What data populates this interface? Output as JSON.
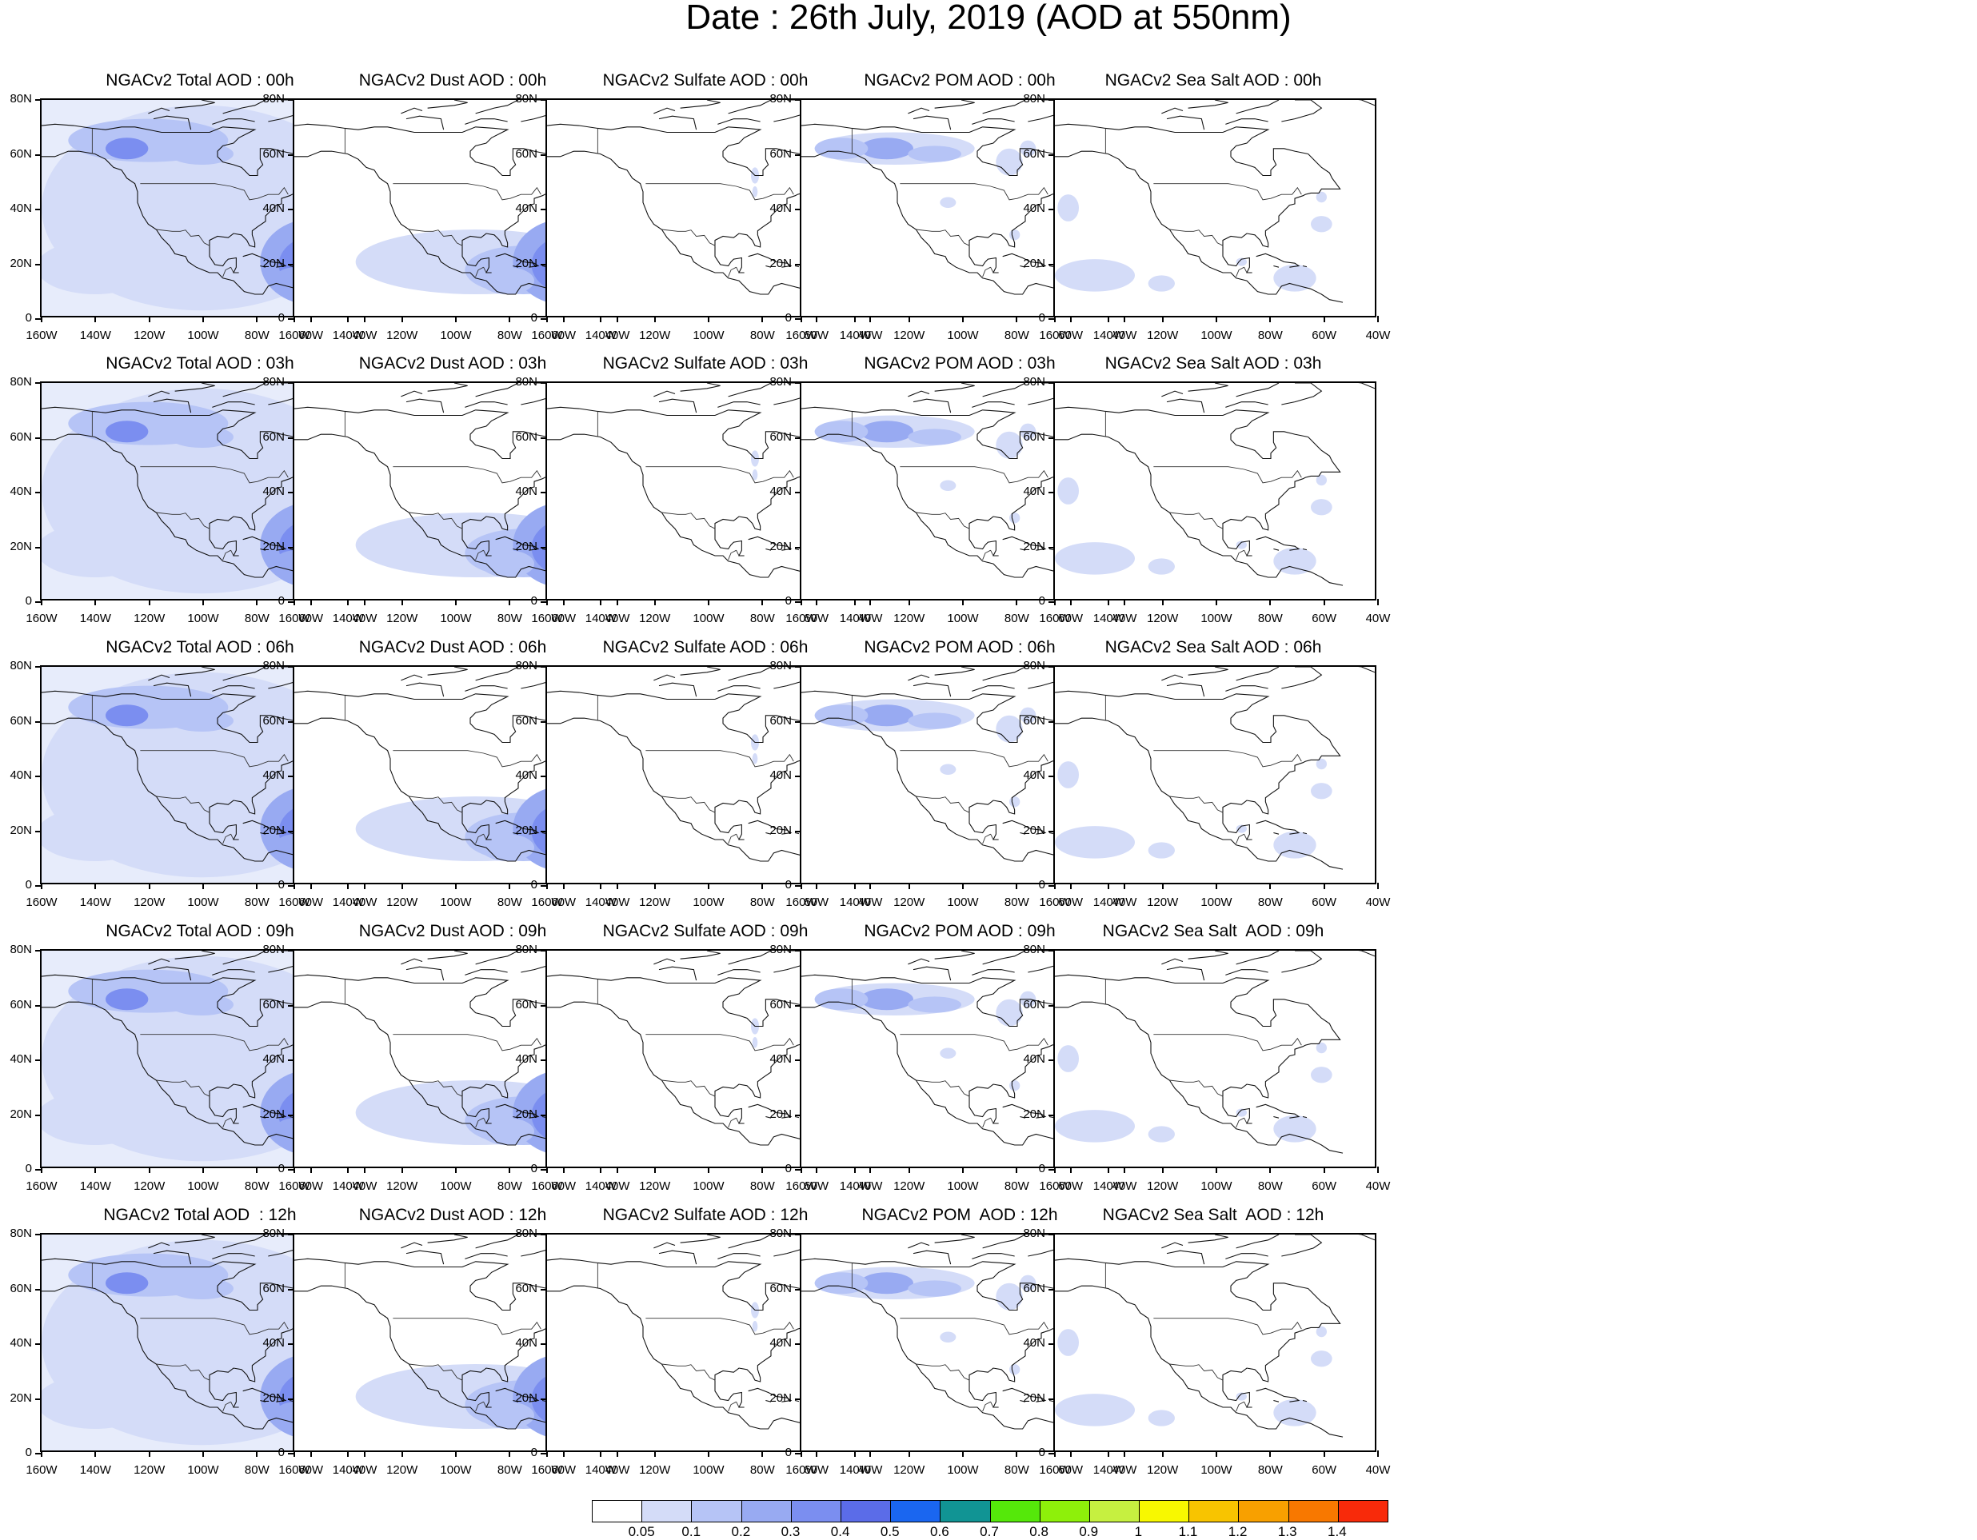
{
  "title": "Date : 26th July, 2019 (AOD at 550nm)",
  "chart_data": {
    "type": "heatmap",
    "projection": "cylindrical-equidistant",
    "lon_range": [
      -160,
      -40
    ],
    "lat_range": [
      0,
      80
    ],
    "lat_ticks": [
      "0",
      "20N",
      "40N",
      "60N",
      "80N"
    ],
    "lon_ticks": [
      "160W",
      "140W",
      "120W",
      "100W",
      "80W",
      "60W",
      "40W"
    ],
    "species": [
      "Total",
      "Dust",
      "Sulfate",
      "POM",
      "Sea Salt"
    ],
    "hours": [
      "00h",
      "03h",
      "06h",
      "09h",
      "12h"
    ],
    "panels": [
      [
        "NGACv2 Total AOD : 00h",
        "NGACv2 Dust AOD : 00h",
        "NGACv2 Sulfate AOD : 00h",
        "NGACv2 POM AOD : 00h",
        "NGACv2 Sea Salt AOD : 00h"
      ],
      [
        "NGACv2 Total AOD : 03h",
        "NGACv2 Dust AOD : 03h",
        "NGACv2 Sulfate AOD : 03h",
        "NGACv2 POM AOD : 03h",
        "NGACv2 Sea Salt AOD : 03h"
      ],
      [
        "NGACv2 Total AOD : 06h",
        "NGACv2 Dust AOD : 06h",
        "NGACv2 Sulfate AOD : 06h",
        "NGACv2 POM AOD : 06h",
        "NGACv2 Sea Salt AOD : 06h"
      ],
      [
        "NGACv2 Total AOD : 09h",
        "NGACv2 Dust AOD : 09h",
        "NGACv2 Sulfate AOD : 09h",
        "NGACv2 POM AOD : 09h",
        "NGACv2 Sea Salt  AOD : 09h"
      ],
      [
        "NGACv2 Total AOD  : 12h",
        "NGACv2 Dust AOD : 12h",
        "NGACv2 Sulfate AOD : 12h",
        "NGACv2 POM  AOD : 12h",
        "NGACv2 Sea Salt  AOD : 12h"
      ]
    ],
    "colorbar": {
      "levels": [
        "0.05",
        "0.1",
        "0.2",
        "0.3",
        "0.4",
        "0.5",
        "0.6",
        "0.7",
        "0.8",
        "0.9",
        "1",
        "1.1",
        "1.2",
        "1.3",
        "1.4"
      ],
      "colors": [
        "#ffffff",
        "#d4dcf8",
        "#b6c4f6",
        "#98aaf2",
        "#7b8ef0",
        "#5b6ce8",
        "#1a66f0",
        "#119494",
        "#55e80a",
        "#8ef00a",
        "#c6f040",
        "#f8f800",
        "#f8c400",
        "#f8a000",
        "#f87800",
        "#f82a0a"
      ]
    }
  }
}
